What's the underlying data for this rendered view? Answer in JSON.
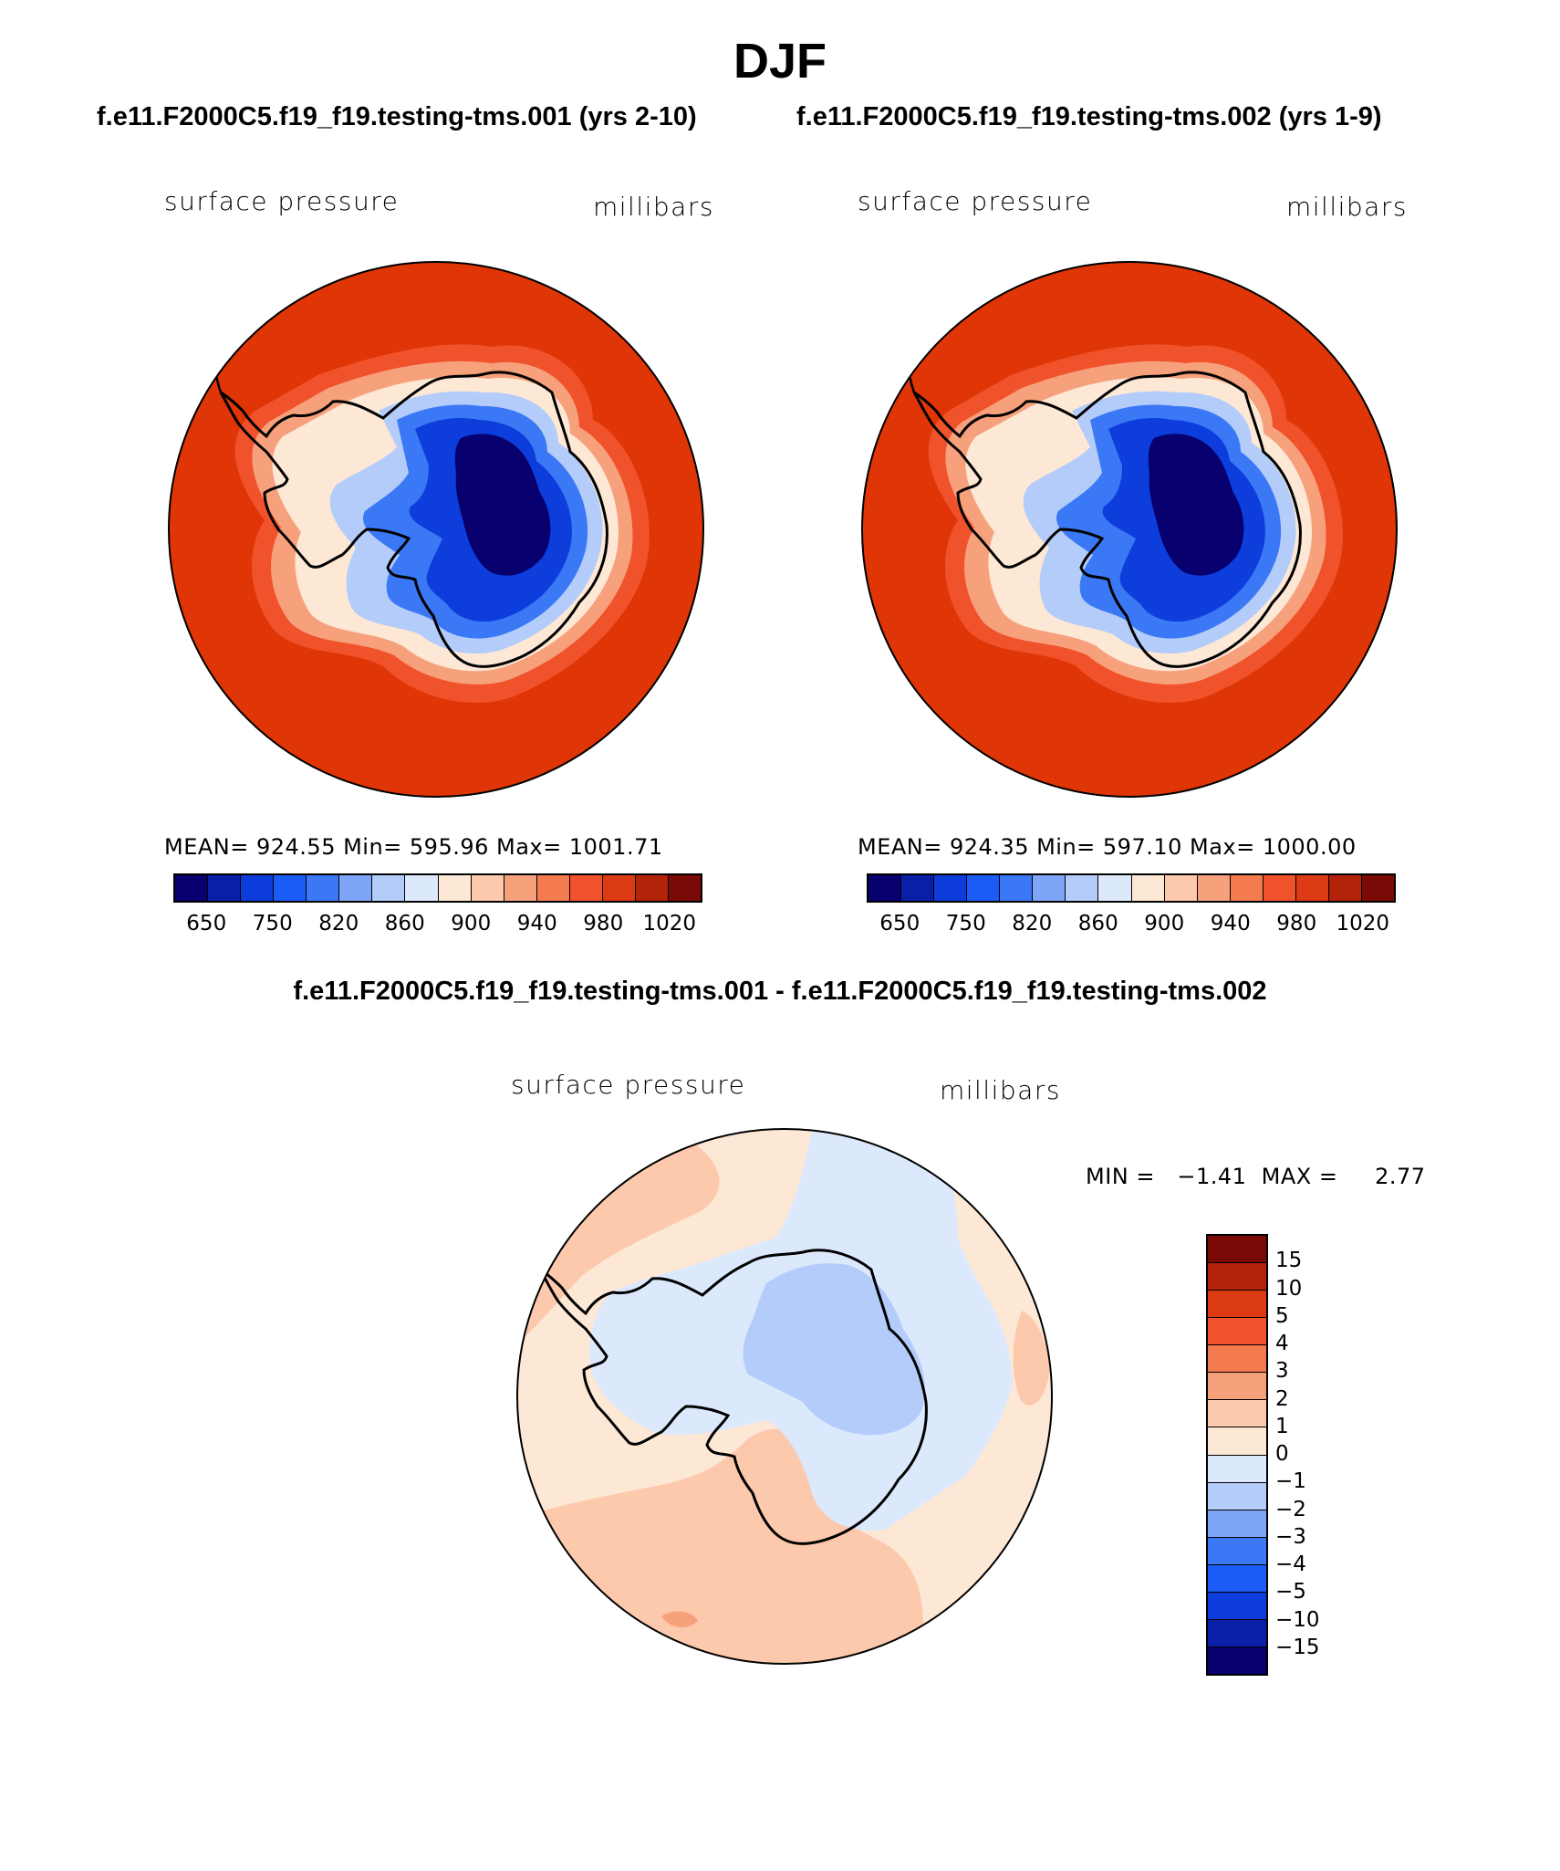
{
  "title": "DJF",
  "panels": [
    {
      "case_title": "f.e11.F2000C5.f19_f19.testing-tms.001 (yrs 2-10)",
      "variable": "surface pressure",
      "units": "millibars",
      "stats": "MEAN= 924.55   Min= 595.96   Max= 1001.71"
    },
    {
      "case_title": "f.e11.F2000C5.f19_f19.testing-tms.002 (yrs 1-9)",
      "variable": "surface pressure",
      "units": "millibars",
      "stats": "MEAN= 924.35   Min= 597.10   Max= 1000.00"
    }
  ],
  "main_colorbar": {
    "colors": [
      "#07006e",
      "#0a1fa8",
      "#0d3ddb",
      "#1a5cf5",
      "#3b78f5",
      "#7ea5f7",
      "#b3ccfa",
      "#dce9fc",
      "#fde8d6",
      "#fcc9ad",
      "#f7a07c",
      "#f47a50",
      "#f0522b",
      "#db3a12",
      "#b22309",
      "#7a0a05"
    ],
    "labels": [
      "650",
      "750",
      "820",
      "860",
      "900",
      "940",
      "980",
      "1020"
    ]
  },
  "difference": {
    "title": "f.e11.F2000C5.f19_f19.testing-tms.001 - f.e11.F2000C5.f19_f19.testing-tms.002",
    "variable": "surface pressure",
    "units": "millibars",
    "minmax": "MIN =   −1.41  MAX =     2.77",
    "colorbar": {
      "colors": [
        "#7a0a05",
        "#b22309",
        "#db3a12",
        "#f0522b",
        "#f47a50",
        "#f7a07c",
        "#fcc9ad",
        "#fde8d6",
        "#dce9fc",
        "#b3ccfa",
        "#7ea5f7",
        "#3b78f5",
        "#1a5cf5",
        "#0d3ddb",
        "#0a1fa8",
        "#07006e"
      ],
      "labels": [
        "15",
        "10",
        "5",
        "4",
        "3",
        "2",
        "1",
        "0",
        "−1",
        "−2",
        "−3",
        "−4",
        "−5",
        "−10",
        "−15"
      ]
    }
  },
  "colors": {
    "ocean": "#e03506",
    "diff_positive": "#fde8d6",
    "diff_positive_2": "#fcc9ad",
    "diff_negative": "#dce9fc",
    "diff_negative_2": "#b3ccfa"
  }
}
